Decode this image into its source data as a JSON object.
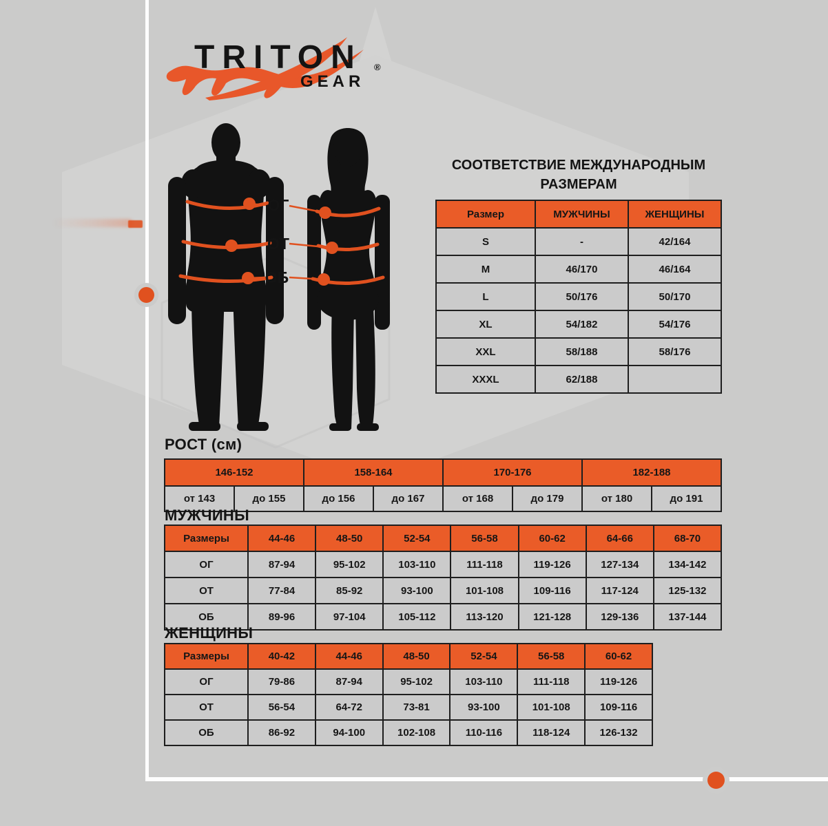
{
  "brand": {
    "name_top": "TRITON",
    "name_bottom": "GEAR",
    "registered": "®",
    "logo_mark": "orange-lizard-salamander-with-swoosh"
  },
  "colors": {
    "background": "#cbcbca",
    "hexagon_watermark": "#d3d3d2",
    "accent_orange_table": "#ea5c28",
    "accent_orange_marks": "#e0511f",
    "text": "#161616",
    "frame_white": "#fdfdfd",
    "table_border": "#1e1e1e",
    "cell_gray": "#cbcbcb"
  },
  "figure_labels": {
    "chest": "ОГ",
    "waist": "ОТ",
    "hips": "ОБ"
  },
  "international_table": {
    "title_line1": "СООТВЕТСТВИЕ МЕЖДУНАРОДНЫМ",
    "title_line2": "РАЗМЕРАМ",
    "headers": [
      "Размер",
      "МУЖЧИНЫ",
      "ЖЕНЩИНЫ"
    ],
    "rows": [
      [
        "S",
        "-",
        "42/164"
      ],
      [
        "M",
        "46/170",
        "46/164"
      ],
      [
        "L",
        "50/176",
        "50/170"
      ],
      [
        "XL",
        "54/182",
        "54/176"
      ],
      [
        "XXL",
        "58/188",
        "58/176"
      ],
      [
        "XXXL",
        "62/188",
        ""
      ]
    ]
  },
  "height_section": {
    "title": "РОСТ (см)",
    "groups": [
      "146-152",
      "158-164",
      "170-176",
      "182-188"
    ],
    "bounds": [
      "от 143",
      "до 155",
      "до 156",
      "до 167",
      "от 168",
      "до 179",
      "от 180",
      "до 191"
    ]
  },
  "men_section": {
    "title": "МУЖЧИНЫ",
    "headers": [
      "Размеры",
      "44-46",
      "48-50",
      "52-54",
      "56-58",
      "60-62",
      "64-66",
      "68-70"
    ],
    "rows": [
      [
        "ОГ",
        "87-94",
        "95-102",
        "103-110",
        "111-118",
        "119-126",
        "127-134",
        "134-142"
      ],
      [
        "ОТ",
        "77-84",
        "85-92",
        "93-100",
        "101-108",
        "109-116",
        "117-124",
        "125-132"
      ],
      [
        "ОБ",
        "89-96",
        "97-104",
        "105-112",
        "113-120",
        "121-128",
        "129-136",
        "137-144"
      ]
    ]
  },
  "women_section": {
    "title": "ЖЕНЩИНЫ",
    "headers": [
      "Размеры",
      "40-42",
      "44-46",
      "48-50",
      "52-54",
      "56-58",
      "60-62"
    ],
    "rows": [
      [
        "ОГ",
        "79-86",
        "87-94",
        "95-102",
        "103-110",
        "111-118",
        "119-126"
      ],
      [
        "ОТ",
        "56-54",
        "64-72",
        "73-81",
        "93-100",
        "101-108",
        "109-116"
      ],
      [
        "ОБ",
        "86-92",
        "94-100",
        "102-108",
        "110-116",
        "118-124",
        "126-132"
      ]
    ]
  }
}
